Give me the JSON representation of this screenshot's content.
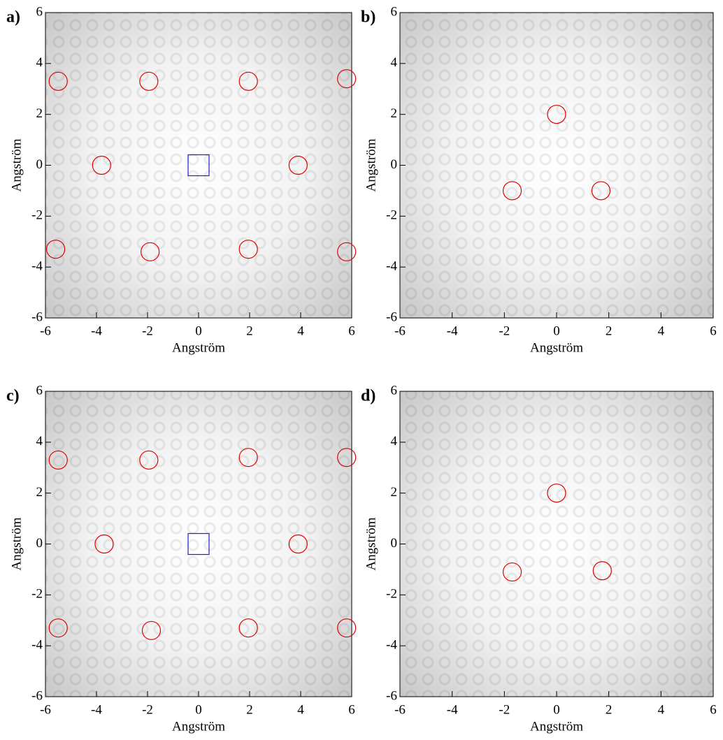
{
  "chart_data": [
    {
      "type": "scatter",
      "label": "a)",
      "xlabel": "Angström",
      "ylabel": "Angström",
      "xlim": [
        -6,
        6
      ],
      "ylim": [
        -6,
        6
      ],
      "xticks": [
        -6,
        -4,
        -2,
        0,
        2,
        4,
        6
      ],
      "yticks": [
        -6,
        -4,
        -2,
        0,
        2,
        4,
        6
      ],
      "series": [
        {
          "color": "#e00000",
          "marker": "circle",
          "x": [
            -5.5,
            -1.95,
            1.95,
            5.8,
            -3.8,
            3.9,
            -5.6,
            -1.9,
            1.95,
            5.8
          ],
          "y": [
            3.3,
            3.3,
            3.3,
            3.4,
            0,
            0,
            -3.3,
            -3.4,
            -3.3,
            -3.4
          ]
        },
        {
          "color": "#2020cc",
          "marker": "square",
          "x": [
            0
          ],
          "y": [
            0
          ]
        }
      ]
    },
    {
      "type": "scatter",
      "label": "b)",
      "xlabel": "Angström",
      "ylabel": "Angström",
      "xlim": [
        -6,
        6
      ],
      "ylim": [
        -6,
        6
      ],
      "xticks": [
        -6,
        -4,
        -2,
        0,
        2,
        4,
        6
      ],
      "yticks": [
        -6,
        -4,
        -2,
        0,
        2,
        4,
        6
      ],
      "series": [
        {
          "color": "#e00000",
          "marker": "circle",
          "x": [
            0,
            -1.7,
            1.7
          ],
          "y": [
            2,
            -1,
            -1
          ]
        }
      ]
    },
    {
      "type": "scatter",
      "label": "c)",
      "xlabel": "Angström",
      "ylabel": "Angström",
      "xlim": [
        -6,
        6
      ],
      "ylim": [
        -6,
        6
      ],
      "xticks": [
        -6,
        -4,
        -2,
        0,
        2,
        4,
        6
      ],
      "yticks": [
        -6,
        -4,
        -2,
        0,
        2,
        4,
        6
      ],
      "series": [
        {
          "color": "#e00000",
          "marker": "circle",
          "x": [
            -5.5,
            -1.95,
            1.95,
            5.8,
            -3.7,
            3.9,
            -5.5,
            -1.85,
            1.95,
            5.8
          ],
          "y": [
            3.3,
            3.3,
            3.4,
            3.4,
            0,
            0,
            -3.3,
            -3.4,
            -3.3,
            -3.3
          ]
        },
        {
          "color": "#2020cc",
          "marker": "square",
          "x": [
            0
          ],
          "y": [
            0
          ]
        }
      ]
    },
    {
      "type": "scatter",
      "label": "d)",
      "xlabel": "Angström",
      "ylabel": "Angström",
      "xlim": [
        -6,
        6
      ],
      "ylim": [
        -6,
        6
      ],
      "xticks": [
        -6,
        -4,
        -2,
        0,
        2,
        4,
        6
      ],
      "yticks": [
        -6,
        -4,
        -2,
        0,
        2,
        4,
        6
      ],
      "series": [
        {
          "color": "#e00000",
          "marker": "circle",
          "x": [
            0,
            -1.7,
            1.75
          ],
          "y": [
            2,
            -1.1,
            -1.05
          ]
        }
      ]
    }
  ]
}
